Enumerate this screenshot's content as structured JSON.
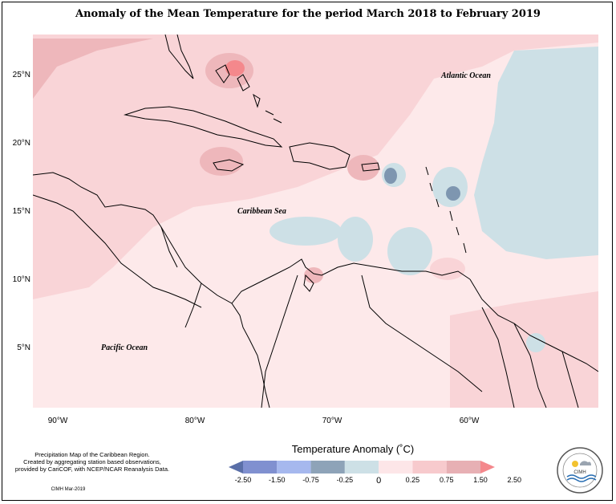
{
  "title": "Anomaly of the Mean Temperature for the period March 2018 to February 2019",
  "map": {
    "lat_labels": [
      "25°N",
      "20°N",
      "15°N",
      "10°N",
      "5°N"
    ],
    "lon_labels": [
      "90°W",
      "80°W",
      "70°W",
      "60°W"
    ],
    "ocean_labels": {
      "atlantic": "Atlantic Ocean",
      "caribbean": "Caribbean Sea",
      "pacific": "Pacific Ocean"
    }
  },
  "legend": {
    "title": "Temperature Anomaly (˚C)",
    "ticks": [
      "-2.50",
      "-1.50",
      "-0.75",
      "-0.25",
      "0",
      "0.25",
      "0.75",
      "1.50",
      "2.50"
    ],
    "colors": [
      "#5a6fa8",
      "#8090d0",
      "#a6b8ee",
      "#8ea3b8",
      "#cde0e6",
      "#fde6e8",
      "#f7cacd",
      "#e7b0b4",
      "#f4888c"
    ]
  },
  "footnote": {
    "line1": "Precipitation Map of the Caribbean Region.",
    "line2": "Created by aggregating station based observations,",
    "line3": "provided by CariCOF, with NCEP/NCAR Reanalysis Data.",
    "credit": "CIMH Mar-2019"
  },
  "logo": {
    "text": "CIMH"
  }
}
